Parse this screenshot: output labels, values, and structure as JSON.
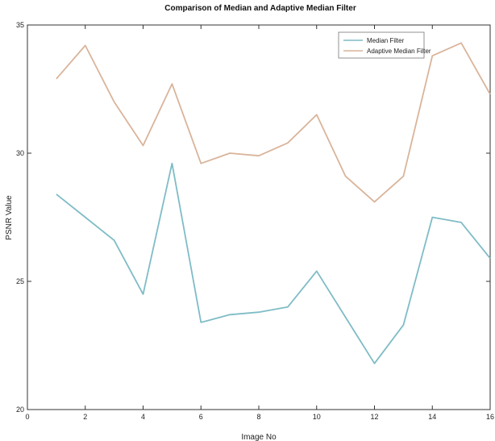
{
  "chart_data": {
    "type": "line",
    "title": "Comparison of Median and Adaptive Median Filter",
    "xlabel": "Image No",
    "ylabel": "PSNR Value",
    "xlim": [
      0,
      16
    ],
    "ylim": [
      20,
      35
    ],
    "xticks": [
      "0",
      "2",
      "4",
      "6",
      "8",
      "10",
      "12",
      "14",
      "16"
    ],
    "yticks": [
      "20",
      "25",
      "30",
      "35"
    ],
    "grid": false,
    "legend_position": "top-right",
    "x": [
      1,
      2,
      3,
      4,
      5,
      6,
      7,
      8,
      9,
      10,
      11,
      12,
      13,
      14,
      15,
      16
    ],
    "series": [
      {
        "name": "Median Filter",
        "color": "#7fbcc6",
        "values": [
          28.4,
          27.5,
          26.6,
          24.5,
          29.6,
          23.4,
          23.7,
          23.8,
          24.0,
          25.4,
          23.6,
          21.8,
          23.3,
          27.5,
          27.3,
          25.9
        ]
      },
      {
        "name": "Adaptive Median Filter",
        "color": "#d9b49a",
        "values": [
          32.9,
          34.2,
          32.0,
          30.3,
          32.7,
          29.6,
          30.0,
          29.9,
          30.4,
          31.5,
          29.1,
          28.1,
          29.1,
          33.8,
          34.3,
          32.3
        ]
      }
    ]
  }
}
